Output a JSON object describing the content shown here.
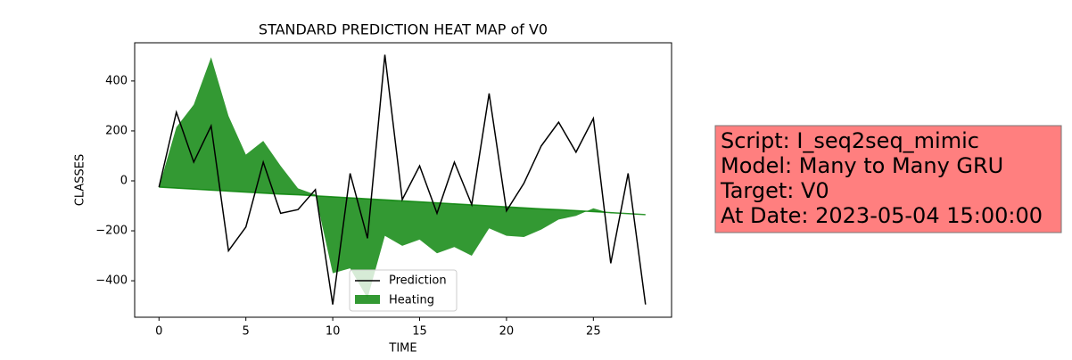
{
  "chart_data": {
    "type": "line",
    "title": "STANDARD PREDICTION HEAT MAP of V0",
    "x_label": "TIME",
    "y_label": "CLASSES",
    "x": [
      0,
      1,
      2,
      3,
      4,
      5,
      6,
      7,
      8,
      9,
      10,
      11,
      12,
      13,
      14,
      15,
      16,
      17,
      18,
      19,
      20,
      21,
      22,
      23,
      24,
      25,
      26,
      27,
      28
    ],
    "series": [
      {
        "name": "Prediction",
        "color": "#000000",
        "values": [
          -25,
          275,
          75,
          220,
          -280,
          -185,
          75,
          -130,
          -115,
          -35,
          -495,
          30,
          -230,
          505,
          -75,
          60,
          -130,
          75,
          -95,
          350,
          -120,
          -10,
          140,
          235,
          115,
          250,
          -330,
          30,
          -495
        ]
      },
      {
        "name": "Heating",
        "color": "#008000",
        "values": [
          -25,
          215,
          305,
          495,
          260,
          105,
          160,
          60,
          -30,
          -55,
          -370,
          -350,
          -470,
          -220,
          -260,
          -235,
          -290,
          -265,
          -300,
          -190,
          -220,
          -225,
          -195,
          -155,
          -140,
          -110,
          -130,
          -130,
          -135
        ],
        "baseline": [
          -25,
          -29,
          -33,
          -37,
          -41,
          -45,
          -49,
          -53,
          -56,
          -60,
          -64,
          -68,
          -72,
          -76,
          -80,
          -84,
          -88,
          -92,
          -96,
          -100,
          -104,
          -108,
          -112,
          -115,
          -119,
          -123,
          -127,
          -131,
          -135
        ]
      }
    ],
    "xlim": [
      -1.4,
      29.5
    ],
    "ylim": [
      -546,
      553
    ],
    "xticks": [
      0,
      5,
      10,
      15,
      20,
      25
    ],
    "yticks": [
      {
        "value": -400,
        "label": "−400"
      },
      {
        "value": -200,
        "label": "−200"
      },
      0,
      200,
      400
    ],
    "legend_position": "lower center",
    "annotation": [
      "Script: I_seq2seq_mimic",
      "Model: Many to Many GRU",
      "Target: V0",
      "At Date: 2023-05-04 15:00:00"
    ],
    "annotation_color": "#ff7f7f"
  }
}
